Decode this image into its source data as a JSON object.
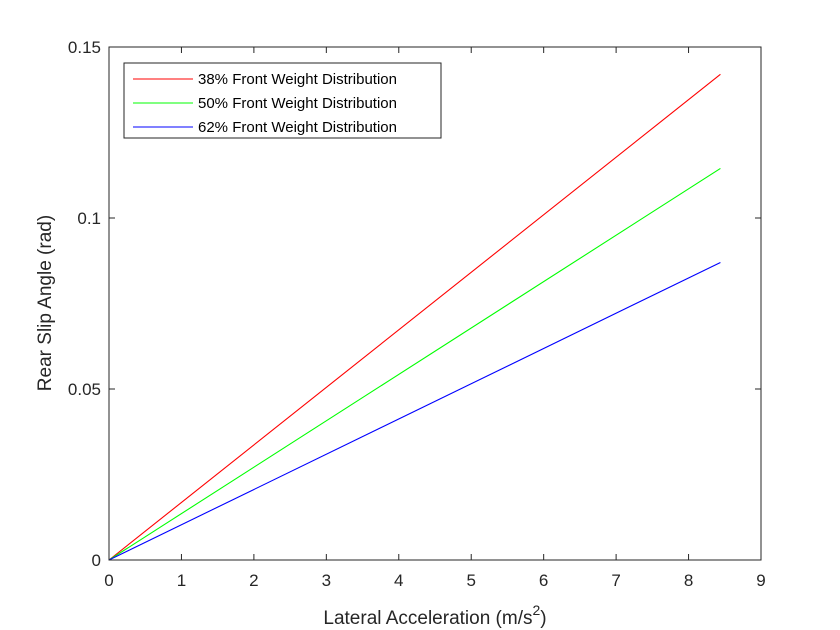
{
  "chart_data": {
    "type": "line",
    "title": "",
    "xlabel": "Lateral Acceleration (m/s",
    "xlabel_superscript": "2",
    "xlabel_suffix": ")",
    "ylabel": "Rear Slip Angle (rad)",
    "xlim": [
      0,
      9
    ],
    "ylim": [
      0,
      0.15
    ],
    "xticks": [
      "0",
      "1",
      "2",
      "3",
      "4",
      "5",
      "6",
      "7",
      "8",
      "9"
    ],
    "yticks": [
      "0",
      "0.05",
      "0.1",
      "0.15"
    ],
    "grid": false,
    "legend_position": "top-left",
    "series": [
      {
        "name": "38% Front Weight Distribution",
        "color": "#ff0000",
        "x": [
          0,
          8.44
        ],
        "y": [
          0,
          0.142
        ]
      },
      {
        "name": "50% Front Weight Distribution",
        "color": "#00ff00",
        "x": [
          0,
          8.44
        ],
        "y": [
          0,
          0.1145
        ]
      },
      {
        "name": "62% Front Weight Distribution",
        "color": "#0000ff",
        "x": [
          0,
          8.44
        ],
        "y": [
          0,
          0.087
        ]
      }
    ]
  }
}
